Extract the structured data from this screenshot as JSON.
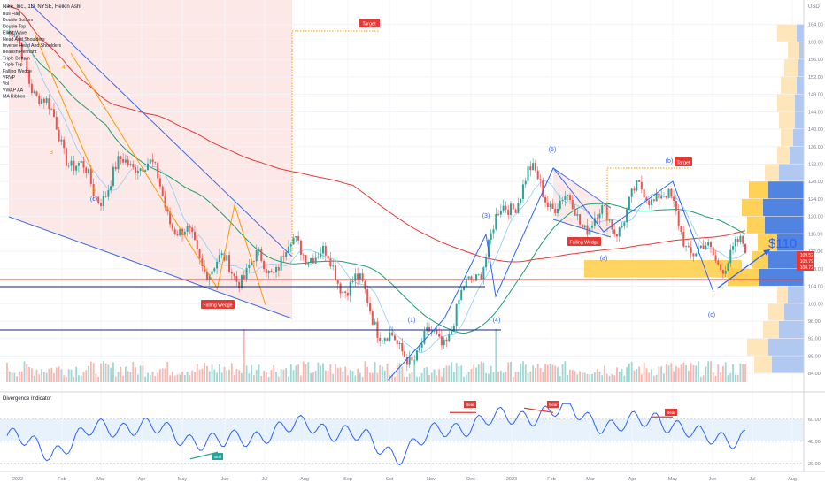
{
  "header": {
    "symbol_line": "Nike, Inc., 1D, NYSE, Heikin Ashi",
    "indicator_list": [
      "Bull Flag",
      "Double Bottom",
      "Double Top",
      "Elliott Wave",
      "Head And Shoulders",
      "Inverse Head And Shoulders",
      "Bearish Pennant",
      "Triple Bottom",
      "Triple Top",
      "Falling Wedge",
      "VRVP",
      "Vol",
      "VWAP AA",
      "MA Ribbon"
    ]
  },
  "currency": "USD",
  "price_axis": {
    "ticks": [
      84,
      88,
      92,
      96,
      100,
      104,
      108,
      112,
      116,
      120,
      124,
      128,
      132,
      136,
      140,
      144,
      148,
      152,
      156,
      160,
      164
    ]
  },
  "time_axis": {
    "labels": [
      "2022",
      "Feb",
      "Mar",
      "Apr",
      "May",
      "Jun",
      "Jul",
      "Aug",
      "Sep",
      "Oct",
      "Nov",
      "Dec",
      "2023",
      "Feb",
      "Mar",
      "Apr",
      "May",
      "Jun",
      "Jul",
      "Aug"
    ]
  },
  "price_badges": [
    {
      "text": "109.52",
      "color": "#e53935"
    },
    {
      "text": "109.79",
      "color": "#e53935"
    },
    {
      "text": "108.72",
      "color": "#e53935"
    }
  ],
  "annotations": {
    "target_1": "Target",
    "target_2": "Target",
    "wedge_1": "Falling Wedge",
    "wedge_2": "Falling Wedge",
    "forecast": "$110",
    "wave_1": "(1)",
    "wave_3": "(3)",
    "wave_4": "(4)",
    "wave_5": "(5)",
    "wave_a": "(a)",
    "wave_b": "(b)",
    "wave_c1": "(c)",
    "wave_c2": "(c)",
    "num_3": "3",
    "num_4": "4",
    "num_5": "5"
  },
  "divergence": {
    "title": "Divergence Indicator",
    "ticks": [
      20,
      40,
      60
    ],
    "tags": [
      "Bear",
      "Bear",
      "Bear",
      "Bull"
    ]
  },
  "chart_data": [
    {
      "type": "line",
      "title": "Nike, Inc., 1D, NYSE, Heikin Ashi",
      "x": [
        "2022-01",
        "2022-02",
        "2022-03",
        "2022-04",
        "2022-05",
        "2022-06",
        "2022-07",
        "2022-08",
        "2022-09",
        "2022-10",
        "2022-11",
        "2022-12",
        "2023-01",
        "2023-02",
        "2023-03",
        "2023-04",
        "2023-05",
        "2023-06"
      ],
      "series": [
        {
          "name": "Nike, Inc., 1D, NYSE, Heikin Ashi",
          "values": [
            162,
            140,
            128,
            133,
            115,
            110,
            106,
            114,
            106,
            85,
            94,
            112,
            127,
            124,
            117,
            126,
            113,
            109
          ]
        }
      ],
      "ylim": [
        82,
        168
      ],
      "grid": true
    },
    {
      "type": "line",
      "title": "Divergence Indicator",
      "x": [
        "2022-01",
        "2022-02",
        "2022-03",
        "2022-04",
        "2022-05",
        "2022-06",
        "2022-07",
        "2022-08",
        "2022-09",
        "2022-10",
        "2022-11",
        "2022-12",
        "2023-01",
        "2023-02",
        "2023-03",
        "2023-04",
        "2023-05",
        "2023-06"
      ],
      "series": [
        {
          "values": [
            45,
            30,
            50,
            55,
            44,
            38,
            48,
            55,
            45,
            28,
            50,
            58,
            64,
            68,
            52,
            62,
            42,
            45
          ]
        }
      ],
      "ylim": [
        15,
        75
      ],
      "grid": true
    }
  ]
}
